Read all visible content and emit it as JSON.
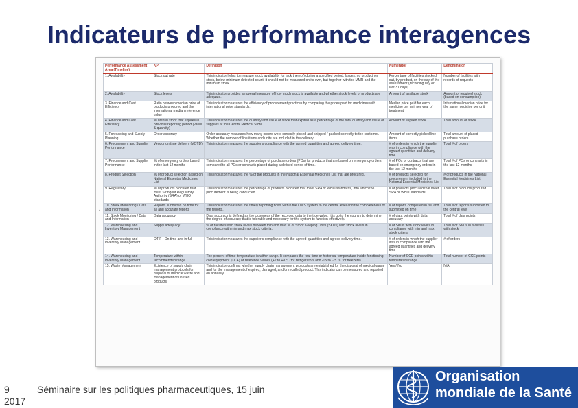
{
  "slide": {
    "title": "Indicateurs de performance interagences",
    "page_number": "9",
    "footer_text": "Séminaire sur les politiques pharmaceutiques, 15 juin",
    "footer_year": "2017"
  },
  "who": {
    "name_line1": "Organisation",
    "name_line2": "mondiale de la Santé",
    "brand_color": "#1e4e9d"
  },
  "table": {
    "headers": [
      "Performance Assessment Area (Timeline)",
      "KPI",
      "Definition",
      "Numerator",
      "Denominator"
    ],
    "rows": [
      [
        "1. Availability",
        "Stock out rate",
        "This indicator helps to measure stock availability (or lack thereof) during a specified period. Issues: no product on stock, below minimum detected count; it should not be measured on its own, but together with the MMR and the minimum stock.",
        "Percentage of facilities stocked out, by product, on the day of the assessment (recording day or last 31 days)",
        "Number of facilities with records of requests"
      ],
      [
        "2. Availability",
        "Stock levels",
        "This indicator provides an overall measure of how much stock is available and whether stock levels of products are adequate.",
        "Amount of available stock",
        "Amount of required stock (based on consumption)"
      ],
      [
        "3. Finance and Cost Efficiency",
        "Ratio between median price of products procured and the international median reference value",
        "This indicator measures the efficiency of procurement practices by comparing the prices paid for medicines with international price standards.",
        "Median price paid for each medicine per unit per year of treatment",
        "International median price for the same medicine per unit"
      ],
      [
        "4. Finance and Cost Efficiency",
        "% of total stock that expires in previous reporting period (value & quantity)",
        "This indicator measures the quantity and value of stock that expired as a percentage of the total quantity and value of supplies at the Central Medical Store.",
        "Amount of expired stock",
        "Total amount of stock"
      ],
      [
        "5. Forecasting and Supply Planning",
        "Order accuracy",
        "Order accuracy measures how many orders were correctly picked and shipped / packed correctly to the customer. Whether the number of line items and units are included in the delivery.",
        "Amount of correctly picked line items",
        "Total amount of placed purchase orders"
      ],
      [
        "6. Procurement and Supplier Performance",
        "Vendor on time delivery (VOTD)",
        "This indicator measures the supplier's compliance with the agreed quantities and agreed delivery time.",
        "# of orders in which the supplier was in compliance with the agreed quantities and delivery time",
        "Total # of orders"
      ],
      [
        "7. Procurement and Supplier Performance",
        "% of emergency orders based in the last 12 months",
        "This indicator measures the percentage of purchase orders (POs) for products that are based on emergency orders compared to all POs or contracts placed during a defined period of time.",
        "# of POs or contracts that are based on emergency orders in the last 12 months",
        "Total # of POs or contracts in the last 12 months"
      ],
      [
        "8. Product Selection",
        "% of product selection based on National Essential Medicines List",
        "This indicator measures the % of the products in the National Essential Medicines List that are procured.",
        "# of products selected for procurement included in the National Essential Medicines List",
        "# of products in the National Essential Medicines List"
      ],
      [
        "9. Regulatory",
        "% of products procured that meet Stringent Regulatory Authority (SRA) or WHO standards",
        "This indicator measures the percentage of products procured that meet SRA or WHO standards, into which the procurement is being conducted.",
        "# of products procured that meet SRA or WHO standards",
        "Total # of products procured"
      ],
      [
        "10. Stock Monitoring / Data and Information",
        "Reports submitted on time for all and accurate reports",
        "This indicator measures the timely reporting flows within the LMIS system to the central level and the completeness of the reports.",
        "# of reports completed in full and submitted on time",
        "Total # of reports submitted to the central level"
      ],
      [
        "11. Stock Monitoring / Data and Information",
        "Data accuracy",
        "Data accuracy is defined as the closeness of the recorded data to the true value. It is up to the country to determine the degree of accuracy that is tolerable and necessary for the system to function effectively.",
        "# of data points with data accuracy",
        "Total # of data points"
      ],
      [
        "12. Warehousing and Inventory Management",
        "Supply adequacy",
        "% of facilities with stock levels between min and max % of Stock Keeping Units (SKUs) with stock levels in compliance with min and max stock criteria.",
        "# of SKUs with stock levels in compliance with min and max stock criteria",
        "Total # of SKUs in facilities with stock"
      ],
      [
        "13. Warehousing and Inventory Management",
        "OTIF - On time and in full",
        "This indicator measures the supplier's compliance with the agreed quantities and agreed delivery time.",
        "# of orders in which the supplier was in compliance with the agreed quantities and delivery time",
        "# of orders"
      ],
      [
        "14. Warehousing and Inventory Management",
        "Temperature within recommended range",
        "The percent of time temperature is within range. It compares the real-time or historical temperature inside functioning cold equipment (CCE) or reference values (+2 to +8 °C for refrigerators and -15 to -25 °C for freezers).",
        "Number of CCE points within temperature range",
        "Total number of CCE points"
      ],
      [
        "15. Waste Management",
        "Existence of supply chain management protocols for disposal of medical waste and management of unused products",
        "This indicator confirms whether supply chain management protocols are established for the disposal of medical waste and for the management of expired, damaged, and/or recalled product. This indicator can be measured and reported on annually.",
        "Yes / No",
        "N/A"
      ]
    ]
  }
}
